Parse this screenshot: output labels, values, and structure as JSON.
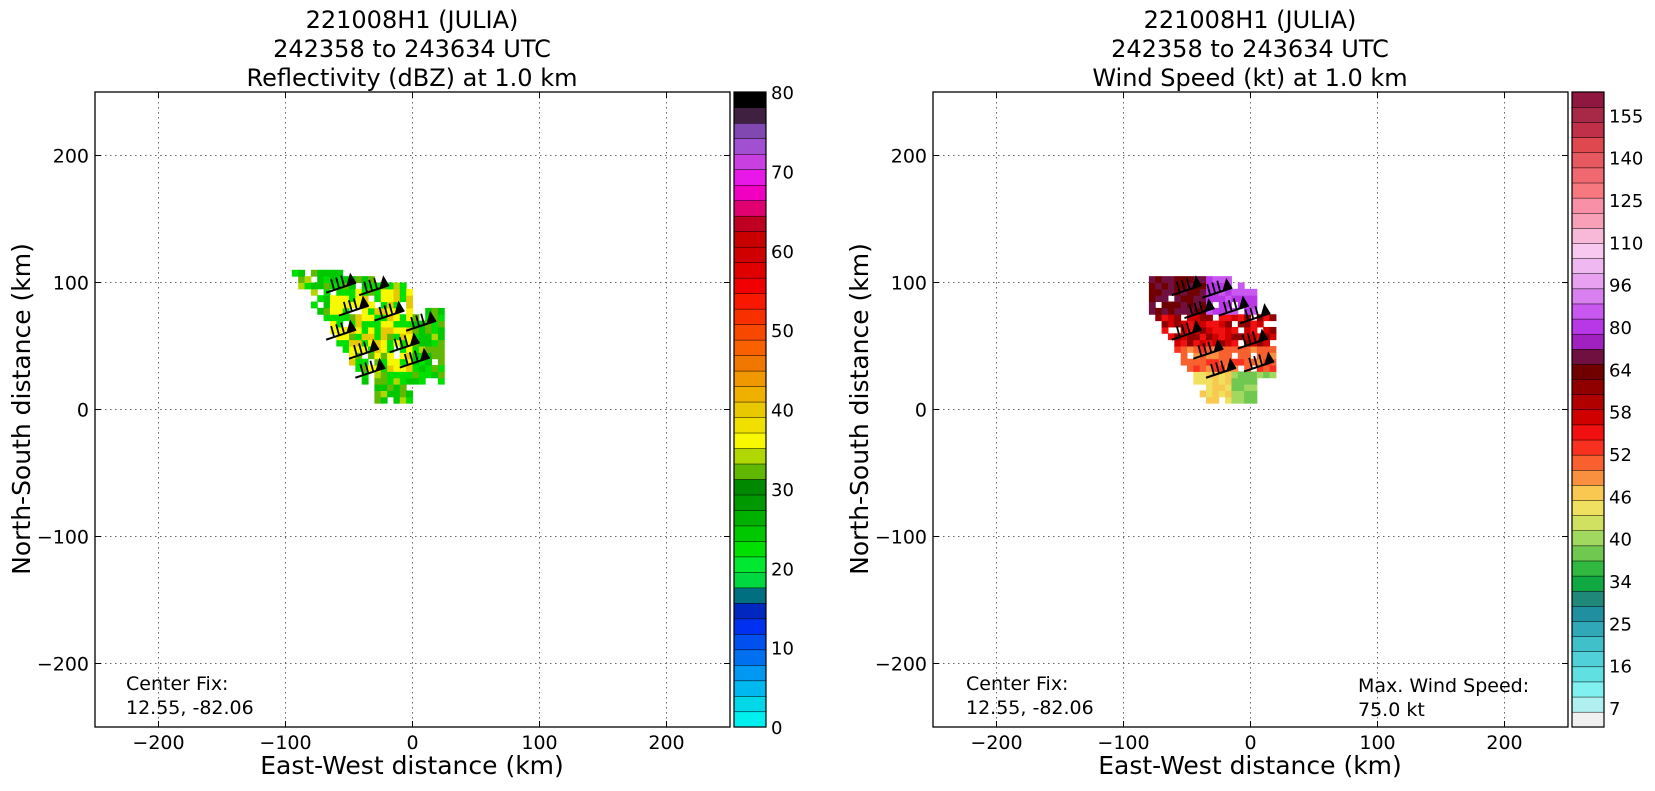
{
  "chart_data": [
    {
      "type": "heatmap",
      "title": [
        "221008H1 (JULIA)",
        "242358 to 243634 UTC",
        "Reflectivity (dBZ) at 1.0 km"
      ],
      "xlabel": "East-West distance (km)",
      "ylabel": "North-South distance (km)",
      "xlim": [
        -250,
        250
      ],
      "ylim": [
        -250,
        250
      ],
      "xticks": [
        -200,
        -100,
        0,
        100,
        200
      ],
      "yticks": [
        -200,
        -100,
        0,
        100,
        200
      ],
      "grid": true,
      "annotation": [
        "Center Fix:",
        "12.55, -82.06"
      ],
      "colorbar": {
        "min": 0,
        "max": 80,
        "ticks": [
          0,
          10,
          20,
          30,
          40,
          50,
          60,
          70,
          80
        ],
        "colors": [
          "#00f0f0",
          "#00d8e8",
          "#00b8f0",
          "#0098f0",
          "#0070f0",
          "#0050f0",
          "#0030f0",
          "#0028c0",
          "#007080",
          "#00d840",
          "#00e830",
          "#00e000",
          "#00c800",
          "#00b000",
          "#009800",
          "#008800",
          "#60b800",
          "#b0d800",
          "#f8f800",
          "#f0e000",
          "#e8c800",
          "#f0b000",
          "#f09800",
          "#f07800",
          "#f86000",
          "#f84800",
          "#f83000",
          "#f81800",
          "#f00000",
          "#e00000",
          "#d00000",
          "#c80000",
          "#c00020",
          "#e00070",
          "#f000c0",
          "#e818e8",
          "#c840e0",
          "#a050d0",
          "#8048b0",
          "#402040",
          "#000000"
        ]
      },
      "field_center": [
        -35,
        60
      ]
    },
    {
      "type": "heatmap",
      "title": [
        "221008H1 (JULIA)",
        "242358 to 243634 UTC",
        "Wind Speed (kt) at 1.0 km"
      ],
      "xlabel": "East-West distance (km)",
      "ylabel": "North-South distance (km)",
      "xlim": [
        -250,
        250
      ],
      "ylim": [
        -250,
        250
      ],
      "xticks": [
        -200,
        -100,
        0,
        100,
        200
      ],
      "yticks": [
        -200,
        -100,
        0,
        100,
        200
      ],
      "grid": true,
      "annotation": [
        "Center Fix:",
        "12.55, -82.06"
      ],
      "annotation2": [
        "Max. Wind Speed:",
        "75.0 kt"
      ],
      "colorbar": {
        "ticks": [
          7,
          16,
          25,
          34,
          40,
          46,
          52,
          58,
          64,
          80,
          96,
          110,
          125,
          140,
          155
        ],
        "colors": [
          "#f0f0f0",
          "#b0f0f0",
          "#80f0f0",
          "#60e0e0",
          "#50d0d8",
          "#40c0c8",
          "#30a8b8",
          "#2090a0",
          "#208878",
          "#10a840",
          "#30b840",
          "#70c850",
          "#a0d860",
          "#d0e060",
          "#f0e060",
          "#f8c850",
          "#f89040",
          "#f86030",
          "#f83020",
          "#f01010",
          "#d00000",
          "#b00000",
          "#900000",
          "#700000",
          "#701040",
          "#a020c0",
          "#b838e8",
          "#c858f0",
          "#d880f0",
          "#e8a0f0",
          "#f0b8f0",
          "#f8c8f0",
          "#f8b8d8",
          "#f8a0b8",
          "#f890a8",
          "#f87880",
          "#f06870",
          "#e85860",
          "#e04850",
          "#c03048",
          "#a82848",
          "#901840"
        ]
      },
      "field_center": [
        -30,
        60
      ]
    }
  ]
}
